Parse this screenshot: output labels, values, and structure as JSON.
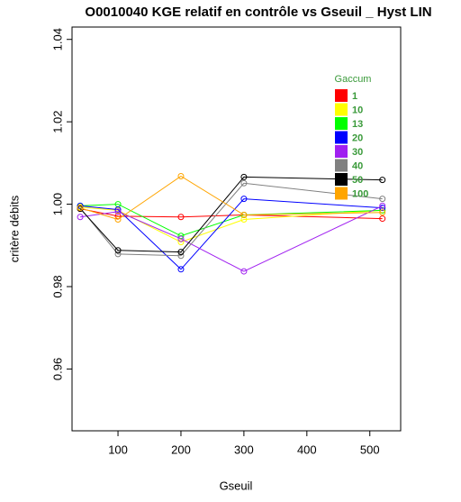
{
  "chart_data": {
    "type": "line",
    "title": "O0010040 KGE relatif en contrôle vs Gseuil _  Hyst LIN",
    "x_label": "Gseuil",
    "y_label": "critère débits",
    "x": [
      40,
      100,
      200,
      300,
      520
    ],
    "xlim": [
      27,
      549
    ],
    "xticks": [
      100,
      200,
      300,
      400,
      500
    ],
    "ylim": [
      0.945,
      1.043
    ],
    "yticks": [
      0.96,
      0.98,
      {
        "value": 1,
        "label": "1.00"
      },
      1.02,
      1.04
    ],
    "grid": false,
    "legend_title": "Gaccum",
    "legend_text_color": "#3a9a3a",
    "legend_position": "top-right",
    "series": [
      {
        "name": "1",
        "color": "#ff0000",
        "values": [
          0.9989,
          0.9971,
          0.9969,
          0.9974,
          0.9965
        ]
      },
      {
        "name": "10",
        "color": "#ffff00",
        "values": [
          0.9993,
          0.9985,
          0.9908,
          0.9963,
          0.9985
        ]
      },
      {
        "name": "13",
        "color": "#00ff00",
        "values": [
          0.9996,
          1.0,
          0.9923,
          0.9974,
          0.9985
        ]
      },
      {
        "name": "20",
        "color": "#0000ff",
        "values": [
          0.9996,
          0.9987,
          0.9842,
          1.0013,
          0.9991
        ]
      },
      {
        "name": "30",
        "color": "#a020f0",
        "values": [
          0.9969,
          0.9982,
          0.9916,
          0.9837,
          0.9996
        ]
      },
      {
        "name": "40",
        "color": "#808080",
        "values": [
          0.9991,
          0.9879,
          0.9875,
          1.0051,
          1.0013
        ]
      },
      {
        "name": "50",
        "color": "#000000",
        "values": [
          0.9989,
          0.9888,
          0.9884,
          1.0066,
          1.0059
        ]
      },
      {
        "name": "100",
        "color": "#ffa500",
        "values": [
          0.9991,
          0.9963,
          1.0068,
          0.9974,
          0.998
        ]
      }
    ]
  }
}
